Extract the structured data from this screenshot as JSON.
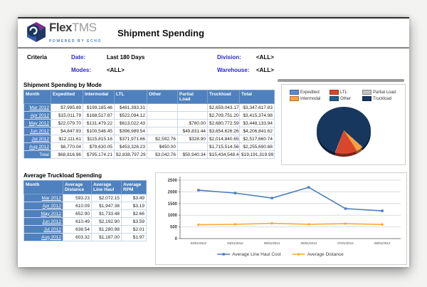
{
  "header": {
    "brand": {
      "flex": "Flex",
      "tms": "TMS",
      "tagline": "POWERED BY ECHO"
    },
    "title": "Shipment Spending"
  },
  "criteria": {
    "label": "Criteria",
    "fields": [
      {
        "label": "Date:",
        "value": "Last 180 Days"
      },
      {
        "label": "Division:",
        "value": "<ALL>"
      },
      {
        "label": "Modes:",
        "value": "<ALL>"
      },
      {
        "label": "Warehouse:",
        "value": "<ALL>"
      }
    ]
  },
  "mode_table": {
    "title": "Shipment Spending by Mode",
    "columns": [
      "Month",
      "Expedited",
      "Intermodal",
      "LTL",
      "Other",
      "Partial Load",
      "Truckload",
      "Total"
    ],
    "rows": [
      {
        "month": "Mar 2012",
        "cells": [
          "$7,995.89",
          "$199,185.46",
          "$481,393.31",
          "",
          "",
          "$2,659,043.17",
          "$3,347,617.83"
        ]
      },
      {
        "month": "Apr 2012",
        "cells": [
          "$15,011.79",
          "$168,517.87",
          "$522,094.12",
          "",
          "",
          "$2,709,751.20",
          "$3,415,374.98"
        ]
      },
      {
        "month": "May 2012",
        "cells": [
          "$22,079.70",
          "$131,479.22",
          "$613,022.43",
          "",
          "$780.00",
          "$2,680,772.59",
          "$3,448,133.94"
        ]
      },
      {
        "month": "Jun 2012",
        "cells": [
          "$4,847.93",
          "$100,546.45",
          "$396,989.54",
          "",
          "$49,831.44",
          "$3,654,626.26",
          "$4,206,841.62"
        ]
      },
      {
        "month": "Jul 2012",
        "cells": [
          "$12,111.61",
          "$115,815.16",
          "$371,971.66",
          "$2,592.76",
          "$328.90",
          "$2,014,840.65",
          "$2,517,660.74"
        ]
      },
      {
        "month": "Aug 2012",
        "cells": [
          "$6,770.04",
          "$79,630.05",
          "$453,326.23",
          "$450.00",
          "",
          "$1,715,514.56",
          "$2,255,690.88"
        ]
      }
    ],
    "total_row": {
      "label": "Total",
      "cells": [
        "$68,816.96",
        "$795,174.21",
        "$2,838,797.29",
        "$3,042.76",
        "$50,940.34",
        "$15,434,548.43",
        "$19,191,319.99"
      ]
    }
  },
  "truckload_table": {
    "title": "Average Truckload Spending",
    "columns": [
      "Month",
      "Average Distance",
      "Average Line Haul",
      "Average RPM"
    ],
    "rows": [
      {
        "month": "Mar 2012",
        "cells": [
          "593.23",
          "$2,072.15",
          "$3.49"
        ]
      },
      {
        "month": "Apr 2012",
        "cells": [
          "610.09",
          "$1,947.38",
          "$3.19"
        ]
      },
      {
        "month": "May 2012",
        "cells": [
          "652.90",
          "$1,733.48",
          "$2.66"
        ]
      },
      {
        "month": "Jun 2012",
        "cells": [
          "610.49",
          "$2,192.90",
          "$3.59"
        ]
      },
      {
        "month": "Jul 2012",
        "cells": [
          "638.54",
          "$1,280.98",
          "$2.01"
        ]
      },
      {
        "month": "Aug 2012",
        "cells": [
          "603.32",
          "$1,187.00",
          "$1.97"
        ]
      }
    ]
  },
  "chart_data": [
    {
      "type": "pie",
      "title": "",
      "legend_position": "top",
      "start_angle_deg": 131,
      "slices": [
        {
          "label": "Expedited",
          "value": 68816.96,
          "pct": 0.36,
          "color": "#5b8bd0"
        },
        {
          "label": "Intermodal",
          "value": 795174.21,
          "pct": 4.14,
          "color": "#f9a13c"
        },
        {
          "label": "LTL",
          "value": 2838797.29,
          "pct": 14.79,
          "color": "#d8472b"
        },
        {
          "label": "Other",
          "value": 3042.76,
          "pct": 0.02,
          "color": "#1f5e8c"
        },
        {
          "label": "Partial Load",
          "value": 50940.34,
          "pct": 0.27,
          "color": "#c3c3c3"
        },
        {
          "label": "Truckload",
          "value": 15434548.43,
          "pct": 80.43,
          "color": "#17375e"
        }
      ],
      "legend_display_order": [
        "Expedited",
        "LTL",
        "Partial Load",
        "Intermodal",
        "Other",
        "Truckload"
      ]
    },
    {
      "type": "line",
      "title": "",
      "x": [
        "03/01/2012",
        "04/01/2012",
        "05/01/2012",
        "06/01/2012",
        "07/01/2012",
        "08/01/2012"
      ],
      "series": [
        {
          "name": "Average Line Haul Cost",
          "color": "#4a7ebb",
          "values": [
            2072.15,
            1947.38,
            1733.48,
            2192.9,
            1280.98,
            1187.0
          ]
        },
        {
          "name": "Average Distance",
          "color": "#faa93a",
          "values": [
            593.23,
            610.09,
            652.9,
            610.49,
            638.54,
            603.32
          ]
        }
      ],
      "ylim": [
        0,
        2500
      ],
      "ytick_step": 500,
      "grid": true,
      "legend_position": "bottom"
    }
  ],
  "theme": {
    "table_header_blue": "#4e81bd",
    "criteria_label_blue": "#2a2ace",
    "tagline_blue": "#4a7ebb"
  }
}
